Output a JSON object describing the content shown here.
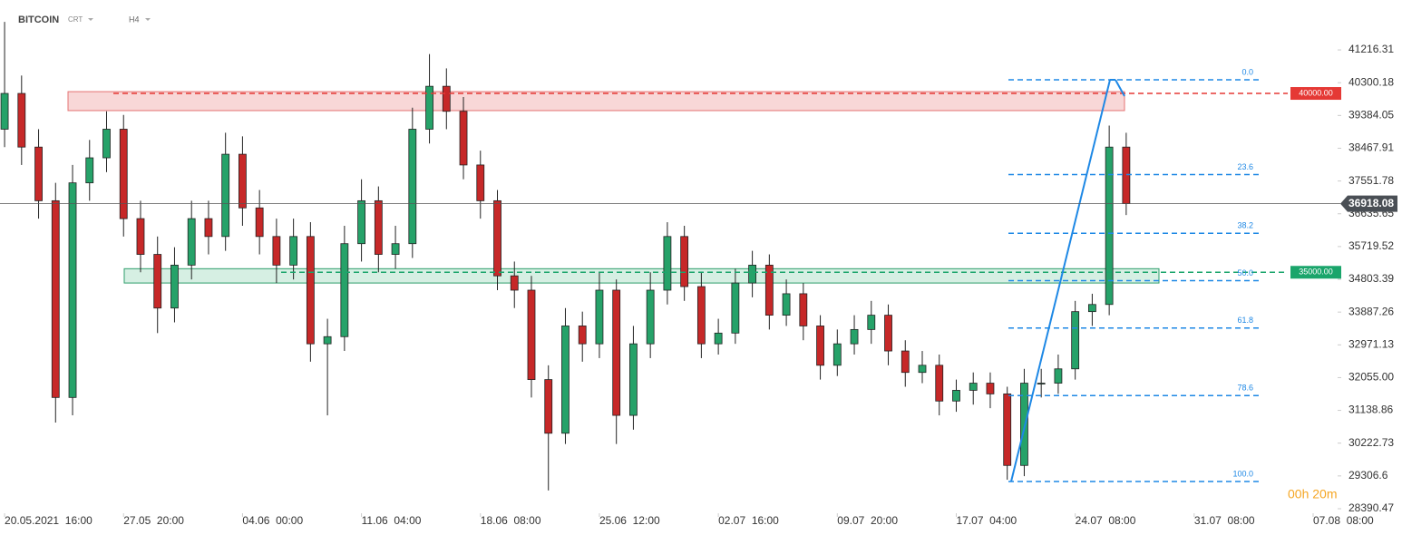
{
  "chart_data": {
    "type": "candlestick",
    "title": "BITCOIN",
    "subtitle": "CRT",
    "timeframe": "H4",
    "timer": "00h 20m",
    "xlim": [
      -0.27,
      78.44
    ],
    "ylim": [
      28162,
      42612
    ],
    "xticks": [
      {
        "value": 0,
        "label": "20.05.2021  16:00"
      },
      {
        "value": 7,
        "label": "27.05  20:00"
      },
      {
        "value": 14,
        "label": "04.06  00:00"
      },
      {
        "value": 21,
        "label": "11.06  04:00"
      },
      {
        "value": 28,
        "label": "18.06  08:00"
      },
      {
        "value": 35,
        "label": "25.06  12:00"
      },
      {
        "value": 42,
        "label": "02.07  16:00"
      },
      {
        "value": 49,
        "label": "09.07  20:00"
      },
      {
        "value": 56,
        "label": "17.07  04:00"
      },
      {
        "value": 63,
        "label": "24.07  08:00"
      },
      {
        "value": 70,
        "label": "31.07  08:00"
      },
      {
        "value": 77,
        "label": "07.08  08:00"
      }
    ],
    "yticks": [
      41216.31,
      40300.18,
      39384.05,
      38467.91,
      37551.78,
      36635.65,
      35719.52,
      34803.39,
      33887.26,
      32971.13,
      {
        "value": 32055,
        "label": "32055.00"
      },
      31138.86,
      30222.73,
      29306.6,
      28390.47
    ],
    "up_color": "#26a269",
    "down_color": "#c62828",
    "open": [
      39000,
      40000,
      38500,
      37000,
      31500,
      37500,
      38200,
      39000,
      36500,
      35500,
      34000,
      35200,
      36500,
      36000,
      38300,
      36800,
      36000,
      35200,
      36000,
      33000,
      33200,
      35800,
      37000,
      35500,
      35800,
      39000,
      40200,
      39500,
      38000,
      37000,
      34900,
      34500,
      32000,
      30500,
      33500,
      33000,
      34500,
      31000,
      33000,
      34500,
      36000,
      34600,
      33000,
      33300,
      34700,
      35200,
      33800,
      34400,
      33500,
      32400,
      33000,
      33400,
      33800,
      32800,
      32200,
      32400,
      31400,
      31700,
      31900,
      31600,
      29600,
      31900,
      31900,
      32300,
      33900,
      34100,
      38500
    ],
    "high": [
      42000,
      40500,
      39000,
      37500,
      38000,
      38700,
      39500,
      39400,
      37000,
      36000,
      35700,
      37000,
      37000,
      38900,
      38800,
      37300,
      36500,
      36500,
      36400,
      33700,
      36300,
      37600,
      37400,
      36300,
      39600,
      41100,
      40700,
      39900,
      38400,
      37300,
      35300,
      34900,
      32400,
      34000,
      33900,
      35000,
      34800,
      33500,
      35000,
      36400,
      36300,
      35000,
      33700,
      35100,
      35600,
      35500,
      34800,
      34700,
      33800,
      33400,
      33800,
      34200,
      34100,
      33100,
      32800,
      32700,
      32000,
      32200,
      32200,
      31800,
      32300,
      32300,
      32700,
      34200,
      34400,
      39100,
      38900
    ],
    "low": [
      38500,
      38000,
      36500,
      30800,
      31000,
      37000,
      37800,
      36000,
      35000,
      33300,
      33600,
      34800,
      35500,
      35600,
      36300,
      35500,
      34700,
      34800,
      32500,
      31000,
      32800,
      35300,
      35000,
      35100,
      35400,
      38600,
      39000,
      37600,
      36500,
      34500,
      34000,
      31500,
      28900,
      30200,
      32500,
      32600,
      30200,
      30600,
      32600,
      34100,
      34200,
      32600,
      32700,
      33000,
      34300,
      33400,
      33500,
      33100,
      32000,
      32100,
      32700,
      33000,
      32400,
      31800,
      31900,
      31000,
      31100,
      31300,
      31200,
      29200,
      29300,
      31500,
      31600,
      32000,
      33500,
      33800,
      36600
    ],
    "close": [
      40000,
      38500,
      37000,
      31500,
      37500,
      38200,
      39000,
      36500,
      35500,
      34000,
      35200,
      36500,
      36000,
      38300,
      36800,
      36000,
      35200,
      36000,
      33000,
      33200,
      35800,
      37000,
      35500,
      35800,
      39000,
      40200,
      39500,
      38000,
      37000,
      34900,
      34500,
      32000,
      30500,
      33500,
      33000,
      34500,
      31000,
      33000,
      34500,
      36000,
      34600,
      33000,
      33300,
      34700,
      35200,
      33800,
      34400,
      33500,
      32400,
      33000,
      33400,
      33800,
      32800,
      32200,
      32400,
      31400,
      31700,
      31900,
      31600,
      29600,
      31900,
      31900,
      32300,
      33900,
      34100,
      38500,
      36918
    ],
    "current_price": 36918.08,
    "zones": [
      {
        "top": 40050,
        "bottom": 39520,
        "color": "#f8d7d7",
        "border": "#e57373"
      },
      {
        "top": 35100,
        "bottom": 34700,
        "color": "#d6efe3",
        "border": "#2e9e6b"
      }
    ],
    "levels": [
      {
        "value": 40000,
        "label": "40000.00",
        "color": "#e53935"
      },
      {
        "value": 35000,
        "label": "35000.00",
        "color": "#1aa56b"
      }
    ],
    "fibonacci": {
      "high": 40381,
      "low": 29151,
      "color": "#1e88e5",
      "levels": [
        {
          "value": 0,
          "label": "0.0"
        },
        23.6,
        38.2,
        {
          "value": 50,
          "label": "50.0"
        },
        61.8,
        78.6,
        {
          "value": 100,
          "label": "100.0"
        }
      ]
    }
  }
}
